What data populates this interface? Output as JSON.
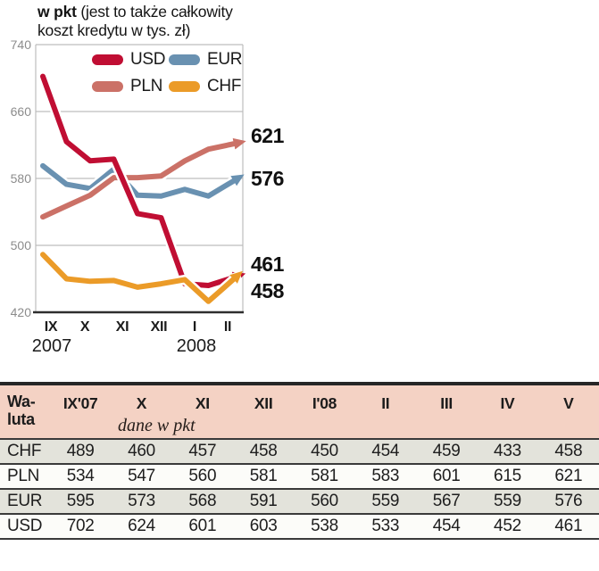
{
  "header": {
    "title_bold": "w pkt",
    "title_line1_rest": " (jest to także całkowity",
    "title_line2": "koszt kredytu w tys. zł)"
  },
  "chart_data": {
    "type": "line",
    "title": "w pkt (jest to także całkowity koszt kredytu w tys. zł)",
    "x": [
      "IX'07",
      "X",
      "XI",
      "XII",
      "I'08",
      "II",
      "III",
      "IV",
      "V"
    ],
    "x_axis_tick_labels": [
      "IX",
      "X",
      "XI",
      "XII",
      "I",
      "II"
    ],
    "year_labels": [
      "2007",
      "2008"
    ],
    "ylim": [
      420,
      740
    ],
    "yticks": [
      740,
      660,
      580,
      500,
      420
    ],
    "grid": true,
    "legend_position": "top-inside",
    "series": [
      {
        "name": "USD",
        "color": "#c00e33",
        "values": [
          702,
          624,
          601,
          603,
          538,
          533,
          454,
          452,
          461
        ]
      },
      {
        "name": "EUR",
        "color": "#6991b1",
        "values": [
          595,
          573,
          568,
          591,
          560,
          559,
          567,
          559,
          576
        ]
      },
      {
        "name": "PLN",
        "color": "#cb7167",
        "values": [
          534,
          547,
          560,
          581,
          581,
          583,
          601,
          615,
          621
        ]
      },
      {
        "name": "CHF",
        "color": "#eb9b28",
        "values": [
          489,
          460,
          457,
          458,
          450,
          454,
          459,
          433,
          458
        ]
      }
    ],
    "end_labels": [
      {
        "series": "PLN",
        "value": 621
      },
      {
        "series": "EUR",
        "value": 576
      },
      {
        "series": "USD",
        "value": 461
      },
      {
        "series": "CHF",
        "value": 458
      }
    ]
  },
  "legend": {
    "rows": [
      [
        {
          "label": "USD"
        },
        {
          "label": "EUR"
        }
      ],
      [
        {
          "label": "PLN"
        },
        {
          "label": "CHF"
        }
      ]
    ]
  },
  "table": {
    "header": {
      "col0_line1": "Wa-",
      "col0_line2": "luta",
      "months": [
        "IX'07",
        "X",
        "XI",
        "XII",
        "I'08",
        "II",
        "III",
        "IV",
        "V"
      ],
      "note": "dane w pkt"
    },
    "rows": [
      {
        "currency": "CHF",
        "values": [
          489,
          460,
          457,
          458,
          450,
          454,
          459,
          433,
          458
        ]
      },
      {
        "currency": "PLN",
        "values": [
          534,
          547,
          560,
          581,
          581,
          583,
          601,
          615,
          621
        ]
      },
      {
        "currency": "EUR",
        "values": [
          595,
          573,
          568,
          591,
          560,
          559,
          567,
          559,
          576
        ]
      },
      {
        "currency": "USD",
        "values": [
          702,
          624,
          601,
          603,
          538,
          533,
          454,
          452,
          461
        ]
      }
    ]
  },
  "colors": {
    "usd": "#c00e33",
    "eur": "#6991b1",
    "pln": "#cb7167",
    "chf": "#eb9b28",
    "table_header_bg": "#f4d2c4",
    "row_shaded_bg": "#e3e3db",
    "row_plain_bg": "#fcfcf9",
    "grid": "#bdbdbd",
    "axis": "#2e2e2e"
  }
}
